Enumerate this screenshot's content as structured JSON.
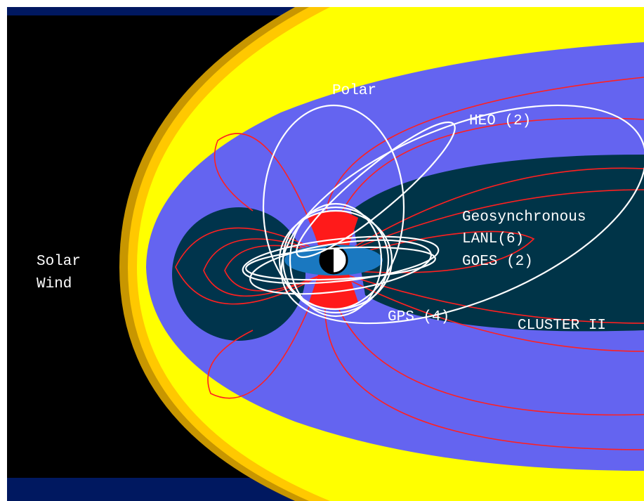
{
  "labels": {
    "solar_wind": [
      "Solar",
      "Wind"
    ],
    "polar": "Polar",
    "heo": "HEO (2)",
    "geosynchronous": "Geosynchronous",
    "lanl": "LANL(6)",
    "goes": "GOES (2)",
    "gps": "GPS (4)",
    "cluster": "CLUSTER II"
  }
}
